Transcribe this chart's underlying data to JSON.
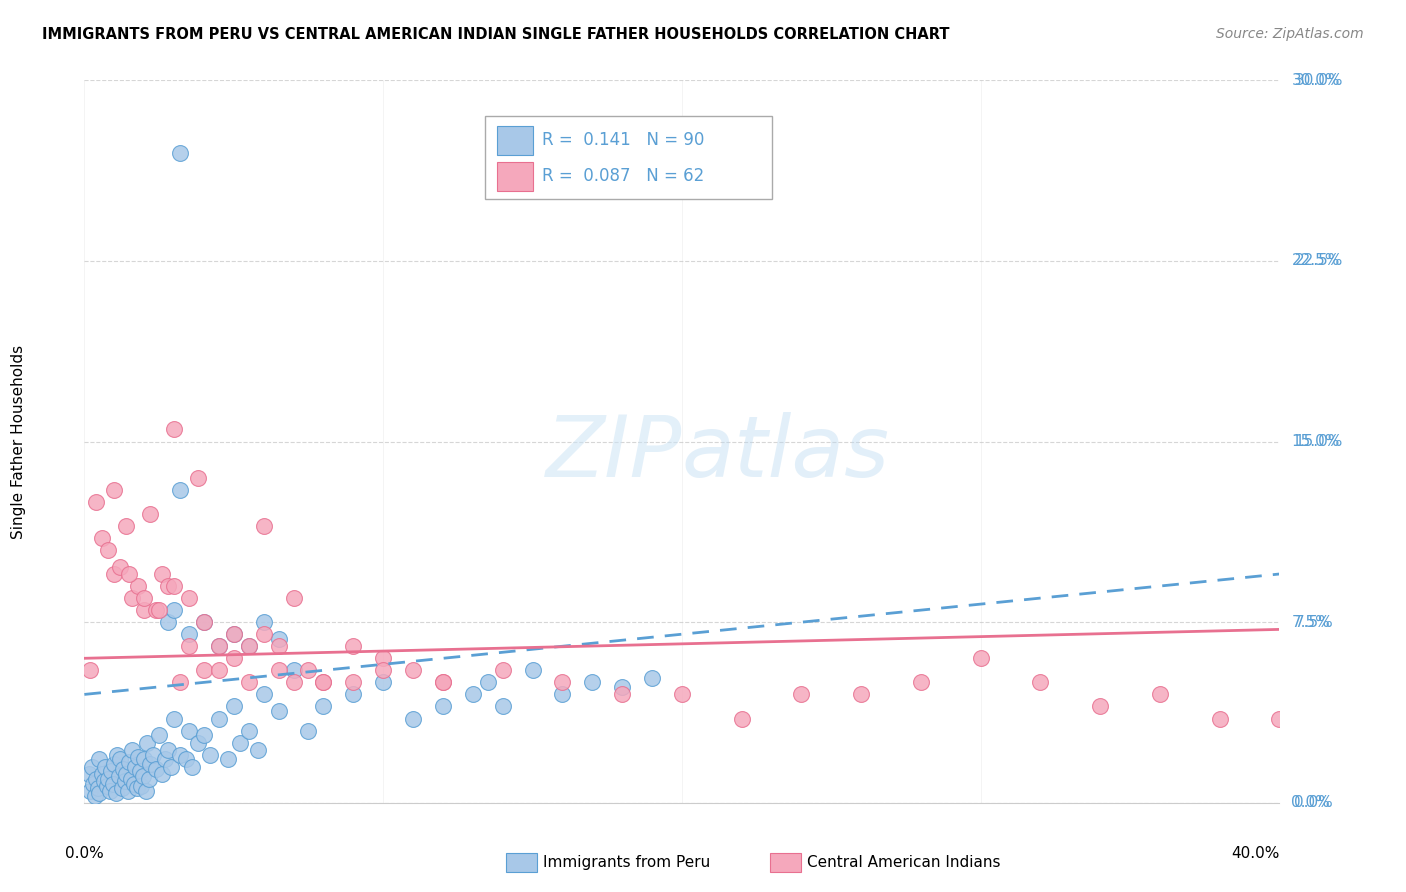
{
  "title": "IMMIGRANTS FROM PERU VS CENTRAL AMERICAN INDIAN SINGLE FATHER HOUSEHOLDS CORRELATION CHART",
  "source": "Source: ZipAtlas.com",
  "ylabel": "Single Father Households",
  "ytick_labels": [
    "0.0%",
    "7.5%",
    "15.0%",
    "22.5%",
    "30.0%"
  ],
  "ytick_values": [
    0.0,
    7.5,
    15.0,
    22.5,
    30.0
  ],
  "xlim": [
    0.0,
    40.0
  ],
  "ylim": [
    0.0,
    30.0
  ],
  "legend_label1": "Immigrants from Peru",
  "legend_label2": "Central American Indians",
  "R1": "0.141",
  "N1": "90",
  "R2": "0.087",
  "N2": "62",
  "color_blue": "#a8c8e8",
  "color_pink": "#f5a8bc",
  "color_blue_dark": "#5a9fd4",
  "color_pink_dark": "#e87090",
  "peru_trend_x": [
    0.0,
    40.0
  ],
  "peru_trend_y": [
    4.5,
    9.5
  ],
  "cai_trend_x": [
    0.0,
    40.0
  ],
  "cai_trend_y": [
    6.0,
    7.2
  ],
  "peru_x": [
    0.15,
    0.2,
    0.25,
    0.3,
    0.35,
    0.4,
    0.45,
    0.5,
    0.5,
    0.6,
    0.65,
    0.7,
    0.75,
    0.8,
    0.85,
    0.9,
    0.95,
    1.0,
    1.05,
    1.1,
    1.15,
    1.2,
    1.25,
    1.3,
    1.35,
    1.4,
    1.45,
    1.5,
    1.55,
    1.6,
    1.65,
    1.7,
    1.75,
    1.8,
    1.85,
    1.9,
    1.95,
    2.0,
    2.05,
    2.1,
    2.15,
    2.2,
    2.3,
    2.4,
    2.5,
    2.6,
    2.7,
    2.8,
    2.9,
    3.0,
    3.2,
    3.4,
    3.5,
    3.6,
    3.8,
    4.0,
    4.2,
    4.5,
    4.8,
    5.0,
    5.2,
    5.5,
    5.8,
    6.0,
    6.5,
    7.0,
    7.5,
    8.0,
    9.0,
    10.0,
    11.0,
    12.0,
    13.0,
    13.5,
    14.0,
    15.0,
    16.0,
    17.0,
    18.0,
    19.0,
    2.8,
    3.0,
    3.5,
    4.0,
    4.5,
    5.0,
    5.5,
    6.0,
    6.5,
    3.2
  ],
  "peru_y": [
    1.2,
    0.5,
    1.5,
    0.8,
    0.3,
    1.0,
    0.6,
    1.8,
    0.4,
    1.2,
    0.9,
    1.5,
    0.7,
    1.0,
    0.5,
    1.3,
    0.8,
    1.6,
    0.4,
    2.0,
    1.1,
    1.8,
    0.6,
    1.4,
    0.9,
    1.2,
    0.5,
    1.7,
    1.0,
    2.2,
    0.8,
    1.5,
    0.6,
    1.9,
    1.3,
    0.7,
    1.1,
    1.8,
    0.5,
    2.5,
    1.0,
    1.6,
    2.0,
    1.4,
    2.8,
    1.2,
    1.8,
    2.2,
    1.5,
    3.5,
    2.0,
    1.8,
    3.0,
    1.5,
    2.5,
    2.8,
    2.0,
    3.5,
    1.8,
    4.0,
    2.5,
    3.0,
    2.2,
    4.5,
    3.8,
    5.5,
    3.0,
    4.0,
    4.5,
    5.0,
    3.5,
    4.0,
    4.5,
    5.0,
    4.0,
    5.5,
    4.5,
    5.0,
    4.8,
    5.2,
    7.5,
    8.0,
    7.0,
    7.5,
    6.5,
    7.0,
    6.5,
    7.5,
    6.8,
    13.0
  ],
  "peru_outlier_x": [
    3.2
  ],
  "peru_outlier_y": [
    27.0
  ],
  "cai_x": [
    0.2,
    0.4,
    0.6,
    0.8,
    1.0,
    1.2,
    1.4,
    1.6,
    1.8,
    2.0,
    2.2,
    2.4,
    2.6,
    2.8,
    3.0,
    3.2,
    3.5,
    3.8,
    4.0,
    4.5,
    5.0,
    5.5,
    6.0,
    6.5,
    7.0,
    8.0,
    9.0,
    10.0,
    12.0,
    14.0,
    16.0,
    18.0,
    20.0,
    22.0,
    24.0,
    26.0,
    28.0,
    30.0,
    32.0,
    34.0,
    36.0,
    38.0,
    40.0,
    1.0,
    1.5,
    2.0,
    2.5,
    3.0,
    3.5,
    4.0,
    4.5,
    5.0,
    5.5,
    6.0,
    6.5,
    7.0,
    7.5,
    8.0,
    9.0,
    10.0,
    11.0,
    12.0
  ],
  "cai_y": [
    5.5,
    12.5,
    11.0,
    10.5,
    9.5,
    9.8,
    11.5,
    8.5,
    9.0,
    8.0,
    12.0,
    8.0,
    9.5,
    9.0,
    15.5,
    5.0,
    6.5,
    13.5,
    5.5,
    5.5,
    6.0,
    5.0,
    11.5,
    6.5,
    8.5,
    5.0,
    6.5,
    6.0,
    5.0,
    5.5,
    5.0,
    4.5,
    4.5,
    3.5,
    4.5,
    4.5,
    5.0,
    6.0,
    5.0,
    4.0,
    4.5,
    3.5,
    3.5,
    13.0,
    9.5,
    8.5,
    8.0,
    9.0,
    8.5,
    7.5,
    6.5,
    7.0,
    6.5,
    7.0,
    5.5,
    5.0,
    5.5,
    5.0,
    5.0,
    5.5,
    5.5,
    5.0
  ]
}
